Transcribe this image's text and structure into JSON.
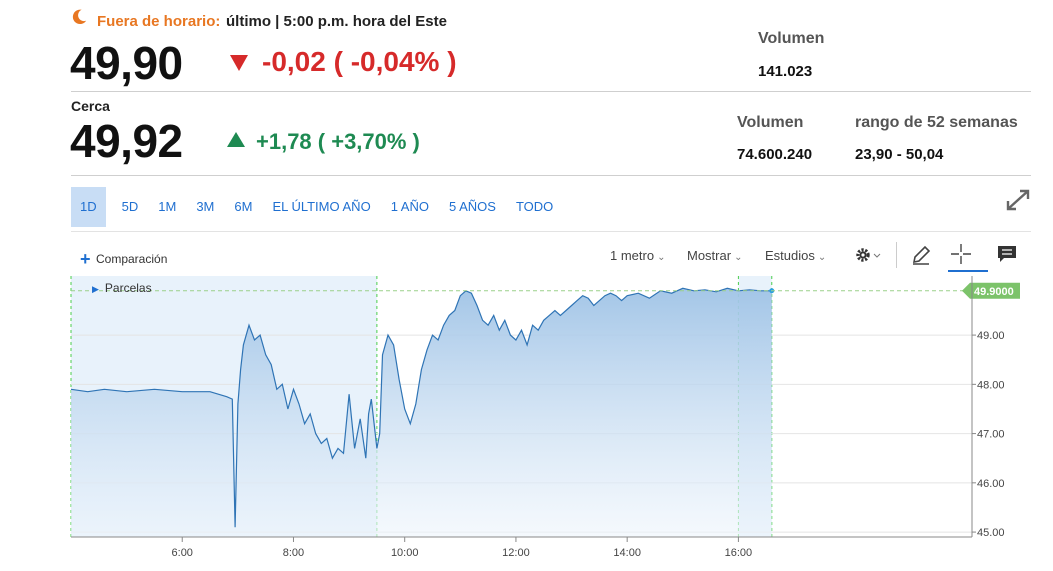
{
  "after_hours": {
    "label": "Fuera de horario:",
    "info": "último | 5:00 p.m. hora del Este",
    "price": "49,90",
    "change": "-0,02 ( -0,04% )",
    "volume_label": "Volumen",
    "volume_value": "141.023"
  },
  "close": {
    "label": "Cerca",
    "price": "49,92",
    "change": "+1,78 ( +3,70% )",
    "volume_label": "Volumen",
    "volume_value": "74.600.240",
    "range_label": "rango de 52 semanas",
    "range_value": "23,90 - 50,04"
  },
  "tabs": [
    "1D",
    "5D",
    "1M",
    "3M",
    "6M",
    "EL ÚLTIMO AÑO",
    "1 AÑO",
    "5 AÑOS",
    "TODO"
  ],
  "active_tab": "1D",
  "toolbar": {
    "comparison": "Comparación",
    "interval": "1 metro",
    "show": "Mostrar",
    "studies": "Estudios"
  },
  "legend_label": "Parcelas",
  "colors": {
    "accent": "#1f6fd0",
    "after_hours": "#e87722",
    "down": "#d62a2a",
    "up": "#1e8a52",
    "line": "#2f74b5",
    "last_badge": "#7cc36a"
  },
  "chart_data": {
    "type": "area",
    "x_ticks": [
      "6:00",
      "8:00",
      "10:00",
      "12:00",
      "14:00",
      "16:00"
    ],
    "x_tick_hours": [
      6,
      8,
      10,
      12,
      14,
      16
    ],
    "y_ticks": [
      "45.00",
      "46.00",
      "47.00",
      "48.00",
      "49.00"
    ],
    "y_tick_values": [
      45,
      46,
      47,
      48,
      49
    ],
    "ylim": [
      44.9,
      50.2
    ],
    "xlim": [
      4.0,
      20.2
    ],
    "last_value": 49.9,
    "last_label": "49.9000",
    "shaded_sessions": [
      [
        4.0,
        9.5
      ],
      [
        16.0,
        16.6
      ]
    ],
    "series": [
      {
        "x": [
          4.0,
          4.3,
          4.6,
          5.0,
          5.5,
          6.0,
          6.5,
          6.8,
          6.9,
          6.95,
          7.0,
          7.05,
          7.1,
          7.2,
          7.3,
          7.4,
          7.5,
          7.6,
          7.7,
          7.8,
          7.9,
          8.0,
          8.1,
          8.2,
          8.3,
          8.4,
          8.5,
          8.6,
          8.7,
          8.8,
          8.9,
          9.0,
          9.1,
          9.2,
          9.3,
          9.35,
          9.4,
          9.45,
          9.5,
          9.55,
          9.6,
          9.7,
          9.8,
          9.9,
          10.0,
          10.1,
          10.2,
          10.3,
          10.4,
          10.5,
          10.6,
          10.7,
          10.8,
          10.9,
          11.0,
          11.1,
          11.2,
          11.3,
          11.4,
          11.5,
          11.6,
          11.7,
          11.8,
          11.9,
          12.0,
          12.1,
          12.2,
          12.3,
          12.4,
          12.5,
          12.6,
          12.7,
          12.8,
          12.9,
          13.0,
          13.1,
          13.2,
          13.3,
          13.4,
          13.5,
          13.6,
          13.7,
          13.8,
          13.9,
          14.0,
          14.2,
          14.4,
          14.6,
          14.8,
          15.0,
          15.2,
          15.4,
          15.6,
          15.8,
          16.0,
          16.2,
          16.4,
          16.6
        ],
        "y": [
          47.9,
          47.85,
          47.9,
          47.85,
          47.9,
          47.85,
          47.85,
          47.75,
          47.7,
          45.1,
          47.6,
          48.3,
          48.8,
          49.2,
          48.9,
          49.0,
          48.6,
          48.4,
          47.9,
          48.0,
          47.5,
          47.9,
          47.6,
          47.2,
          47.4,
          47.0,
          46.8,
          46.9,
          46.5,
          46.7,
          46.6,
          47.8,
          46.7,
          47.3,
          46.5,
          47.4,
          47.7,
          47.2,
          46.7,
          47.0,
          48.6,
          49.0,
          48.8,
          48.1,
          47.5,
          47.2,
          47.6,
          48.3,
          48.7,
          49.0,
          48.9,
          49.2,
          49.4,
          49.5,
          49.8,
          49.9,
          49.85,
          49.6,
          49.3,
          49.2,
          49.4,
          49.1,
          49.3,
          49.0,
          48.9,
          49.1,
          48.8,
          49.2,
          49.1,
          49.3,
          49.4,
          49.5,
          49.4,
          49.5,
          49.6,
          49.7,
          49.8,
          49.75,
          49.6,
          49.7,
          49.8,
          49.85,
          49.8,
          49.7,
          49.8,
          49.85,
          49.75,
          49.9,
          49.85,
          49.95,
          49.9,
          49.92,
          49.88,
          49.95,
          49.9,
          49.92,
          49.9,
          49.9
        ]
      }
    ]
  }
}
